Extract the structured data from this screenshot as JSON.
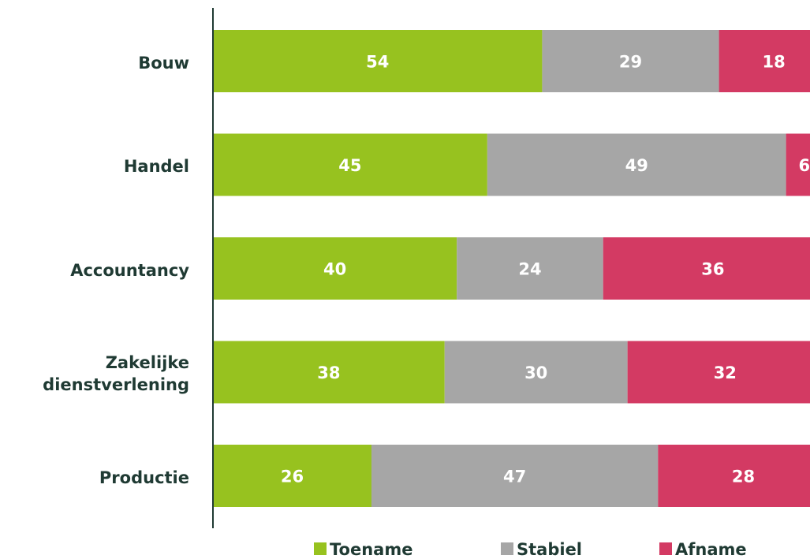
{
  "chart_data": {
    "type": "stacked-barh",
    "categories": [
      "Bouw",
      "Handel",
      "Accountancy",
      "Zakelijke dienstverlening",
      "Productie"
    ],
    "series": [
      {
        "name": "Toename",
        "color": "#97c21f",
        "values": [
          54,
          45,
          40,
          38,
          26
        ]
      },
      {
        "name": "Stabiel",
        "color": "#a6a6a6",
        "values": [
          29,
          49,
          24,
          30,
          47
        ]
      },
      {
        "name": "Afname",
        "color": "#d33a63",
        "values": [
          18,
          6,
          36,
          32,
          28
        ]
      }
    ],
    "xlim": [
      0,
      100
    ],
    "legend": "bottom"
  }
}
